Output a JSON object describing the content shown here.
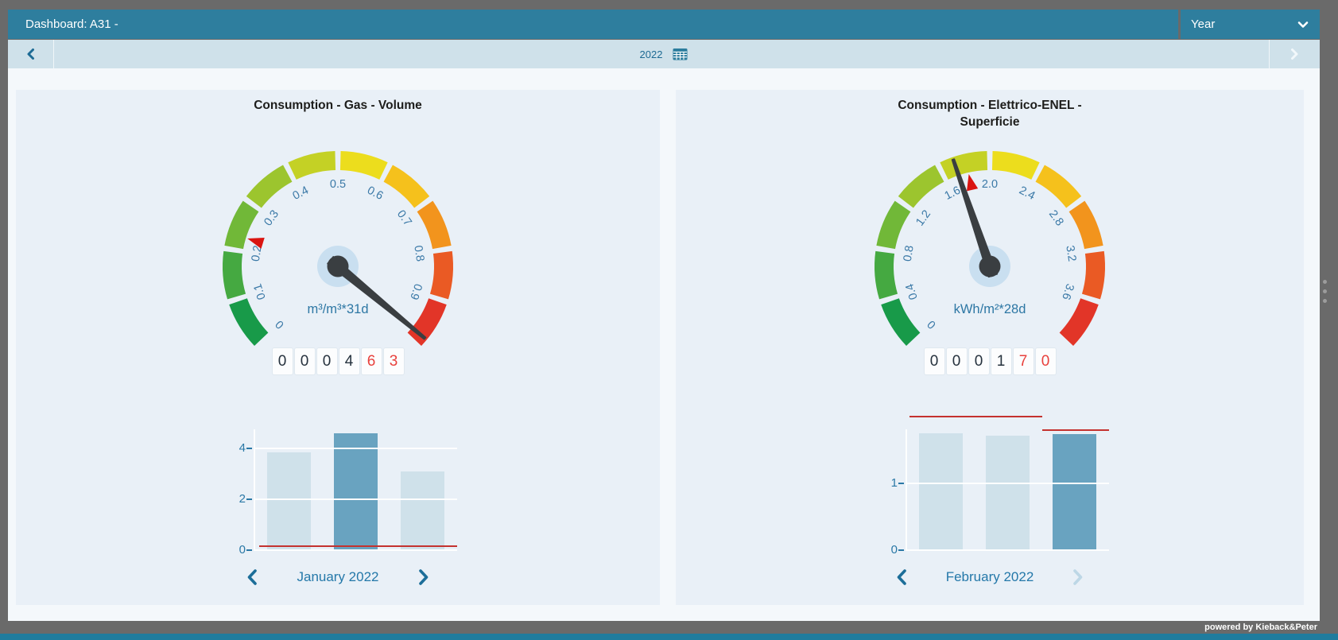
{
  "header": {
    "title": "Dashboard: A31 -",
    "period_selector": {
      "label": "Year",
      "icon": "chevron-down-icon"
    }
  },
  "period_nav": {
    "current": "2022",
    "prev_icon": "chevron-left-icon",
    "next_icon": "chevron-right-icon",
    "calendar_icon": "calendar-icon"
  },
  "footer": {
    "powered_by": "powered by Kieback&Peter"
  },
  "colors": {
    "accent_teal": "#2e7e9e",
    "nav_bar": "#cfe1ea",
    "panel_bg": "#e9f0f7",
    "bar_default": "#cfe1ea",
    "bar_highlight": "#69a3c0",
    "alert_red": "#c4322f",
    "marker_red": "#da1410",
    "needle": "#3a3e41",
    "gauge_label_blue": "#3b79a7"
  },
  "panels": [
    {
      "title": "Consumption - Gas - Volume",
      "gauge": {
        "min": 0,
        "max": 1,
        "value": 0.98,
        "marker": 0.23,
        "unit": "m³/m³*31d",
        "tick_labels": [
          {
            "v": 0,
            "t": "0"
          },
          {
            "v": 0.1,
            "t": "0.1"
          },
          {
            "v": 0.2,
            "t": "0.2"
          },
          {
            "v": 0.3,
            "t": "0.3"
          },
          {
            "v": 0.4,
            "t": "0.4"
          },
          {
            "v": 0.5,
            "t": "0.5"
          },
          {
            "v": 0.6,
            "t": "0.6"
          },
          {
            "v": 0.7,
            "t": "0.7"
          },
          {
            "v": 0.8,
            "t": "0.8"
          },
          {
            "v": 0.9,
            "t": "0.9"
          }
        ],
        "segment_colors": [
          "#189a49",
          "#45a941",
          "#71b838",
          "#9cc52e",
          "#c4d125",
          "#ecdd1d",
          "#f5c11c",
          "#f2941d",
          "#ea5a24",
          "#e23528"
        ]
      },
      "odometer": {
        "digits": [
          {
            "d": "0",
            "alert": false
          },
          {
            "d": "0",
            "alert": false
          },
          {
            "d": "0",
            "alert": false
          },
          {
            "d": "4",
            "alert": false
          },
          {
            "d": "6",
            "alert": true
          },
          {
            "d": "3",
            "alert": true
          }
        ]
      },
      "chart_data": {
        "type": "bar",
        "values": [
          3.85,
          4.6,
          3.1
        ],
        "highlight_index": 1,
        "yticks": [
          0,
          2,
          4
        ],
        "ylim": [
          0,
          4.75
        ],
        "red_lines": [
          {
            "value": 0.16,
            "x1": 0.02,
            "x2": 1.0
          }
        ],
        "grid": true,
        "xlabel": "",
        "ylabel": ""
      },
      "month_nav": {
        "label": "January 2022",
        "prev_enabled": true,
        "next_enabled": true
      }
    },
    {
      "title": "Consumption - Elettrico-ENEL - Superficie",
      "gauge": {
        "min": 0,
        "max": 4,
        "value": 1.72,
        "marker": 1.81,
        "unit": "kWh/m²*28d",
        "tick_labels": [
          {
            "v": 0,
            "t": "0"
          },
          {
            "v": 0.4,
            "t": "0.4"
          },
          {
            "v": 0.8,
            "t": "0.8"
          },
          {
            "v": 1.2,
            "t": "1.2"
          },
          {
            "v": 1.6,
            "t": "1.6"
          },
          {
            "v": 2,
            "t": "2.0"
          },
          {
            "v": 2.4,
            "t": "2.4"
          },
          {
            "v": 2.8,
            "t": "2.8"
          },
          {
            "v": 3.2,
            "t": "3.2"
          },
          {
            "v": 3.6,
            "t": "3.6"
          }
        ],
        "segment_colors": [
          "#189a49",
          "#45a941",
          "#71b838",
          "#9cc52e",
          "#c4d125",
          "#ecdd1d",
          "#f5c11c",
          "#f2941d",
          "#ea5a24",
          "#e23528"
        ]
      },
      "odometer": {
        "digits": [
          {
            "d": "0",
            "alert": false
          },
          {
            "d": "0",
            "alert": false
          },
          {
            "d": "0",
            "alert": false
          },
          {
            "d": "1",
            "alert": false
          },
          {
            "d": "7",
            "alert": true
          },
          {
            "d": "0",
            "alert": true
          }
        ]
      },
      "chart_data": {
        "type": "bar",
        "values": [
          1.75,
          1.72,
          1.74
        ],
        "highlight_index": 2,
        "yticks": [
          0,
          1
        ],
        "ylim": [
          0,
          1.81
        ],
        "red_lines": [
          {
            "value": 2.0,
            "x1": 0.01,
            "x2": 0.67
          },
          {
            "value": 1.8,
            "x1": 0.67,
            "x2": 1.0
          }
        ],
        "grid": true,
        "xlabel": "",
        "ylabel": ""
      },
      "month_nav": {
        "label": "February 2022",
        "prev_enabled": true,
        "next_enabled": false
      }
    }
  ]
}
